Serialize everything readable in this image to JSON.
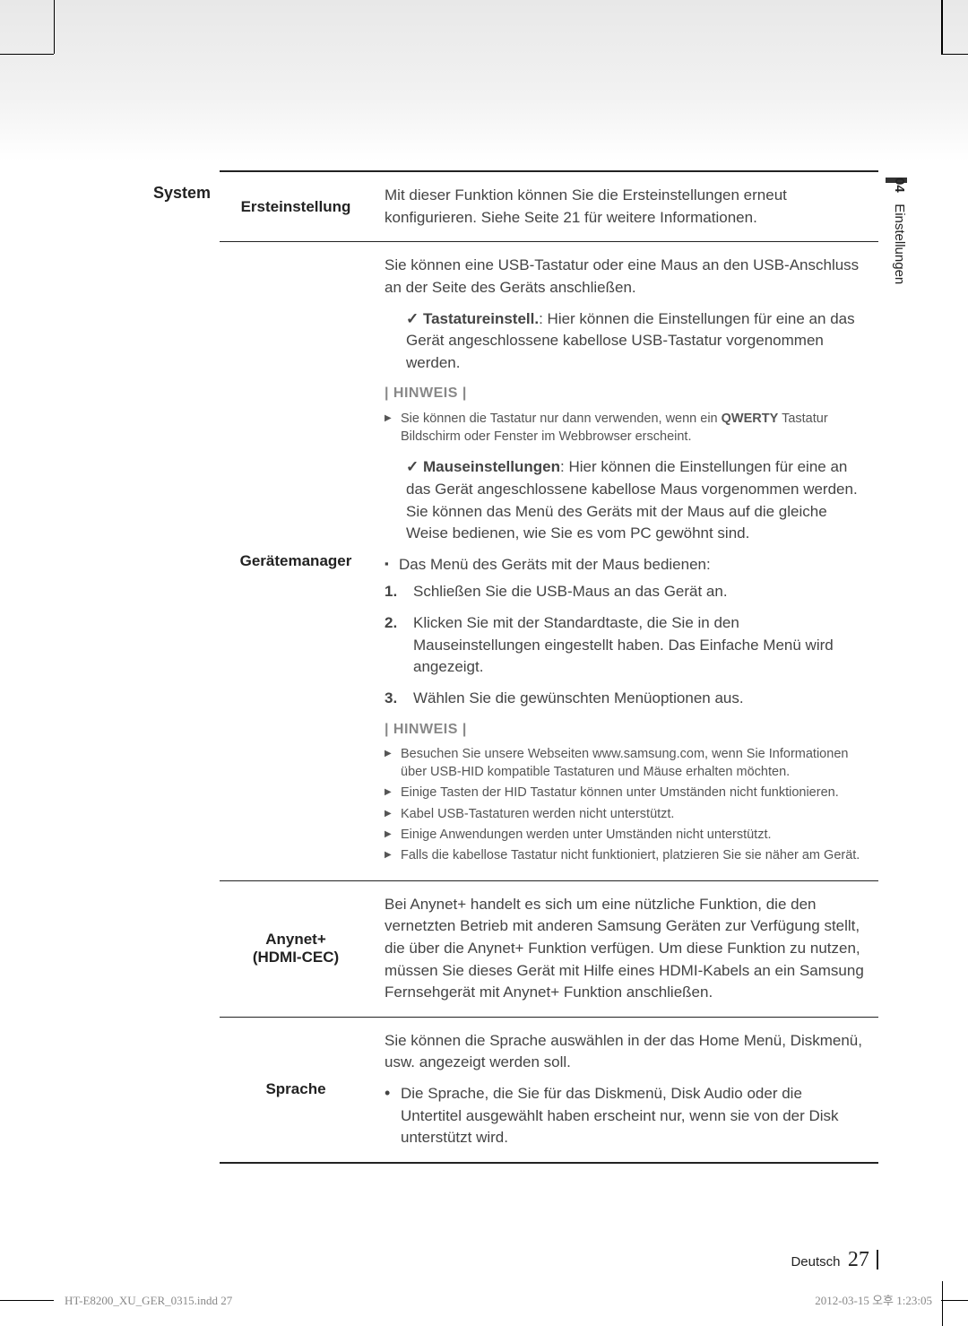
{
  "sideTab": {
    "num": "04",
    "label": "Einstellungen"
  },
  "col1_heading": "System",
  "rows": {
    "ersteinstellung": {
      "label": "Ersteinstellung",
      "desc": "Mit dieser Funktion können Sie die Ersteinstellungen erneut konfigurieren. Siehe Seite 21 für weitere Informationen."
    },
    "geraetemanager": {
      "label": "Gerätemanager",
      "intro": "Sie können eine USB-Tastatur oder eine Maus an den USB-Anschluss an der Seite des Geräts anschließen.",
      "keyboard_label": "Tastatureinstell.",
      "keyboard_desc": ": Hier können die Einstellungen für eine an das Gerät angeschlossene kabellose USB-Tastatur vorgenommen werden.",
      "hinweis_label": "| HINWEIS |",
      "keyboard_note": "Sie können die Tastatur nur dann verwenden, wenn ein QWERTY Tastatur Bildschirm oder Fenster im Webbrowser erscheint.",
      "mouse_label": "Mauseinstellungen",
      "mouse_desc": ": Hier können die Einstellungen für eine an das Gerät angeschlossene kabellose Maus vorgenommen werden. Sie können das Menü des Geräts mit der Maus auf die gleiche Weise bedienen, wie Sie es vom PC gewöhnt sind.",
      "mouse_heading": "Das Menü des Geräts mit der Maus bedienen:",
      "steps": [
        "Schließen Sie die USB-Maus an das Gerät an.",
        "Klicken Sie mit der Standardtaste, die Sie in den Mauseinstellungen eingestellt haben. Das Einfache Menü wird angezeigt.",
        "Wählen Sie die gewünschten Menüoptionen aus."
      ],
      "notes2": [
        "Besuchen Sie unsere Webseiten www.samsung.com, wenn Sie Informationen über USB-HID kompatible Tastaturen und Mäuse erhalten möchten.",
        "Einige Tasten der HID Tastatur können unter Umständen nicht funktionieren.",
        "Kabel USB-Tastaturen werden nicht unterstützt.",
        "Einige Anwendungen werden unter Umständen nicht unterstützt.",
        "Falls die kabellose Tastatur nicht funktioniert, platzieren Sie sie näher am Gerät."
      ]
    },
    "anynet": {
      "label1": "Anynet+",
      "label2": "(HDMI-CEC)",
      "desc": "Bei Anynet+ handelt es sich um eine nützliche Funktion, die den vernetzten Betrieb mit anderen Samsung Geräten zur Verfügung stellt, die über die Anynet+ Funktion verfügen. Um diese Funktion zu nutzen, müssen Sie dieses Gerät mit Hilfe eines HDMI-Kabels an ein Samsung Fernsehgerät mit Anynet+ Funktion anschließen."
    },
    "sprache": {
      "label": "Sprache",
      "desc": "Sie können die Sprache auswählen in der das Home Menü, Diskmenü, usw. angezeigt werden soll.",
      "bullet": "Die Sprache, die Sie für das Diskmenü, Disk Audio oder die Untertitel ausgewählt haben erscheint nur, wenn sie von der Disk unterstützt wird."
    }
  },
  "footer": {
    "lang": "Deutsch",
    "page": "27"
  },
  "print": {
    "left": "HT-E8200_XU_GER_0315.indd   27",
    "right": "2012-03-15   오후 1:23:05"
  }
}
